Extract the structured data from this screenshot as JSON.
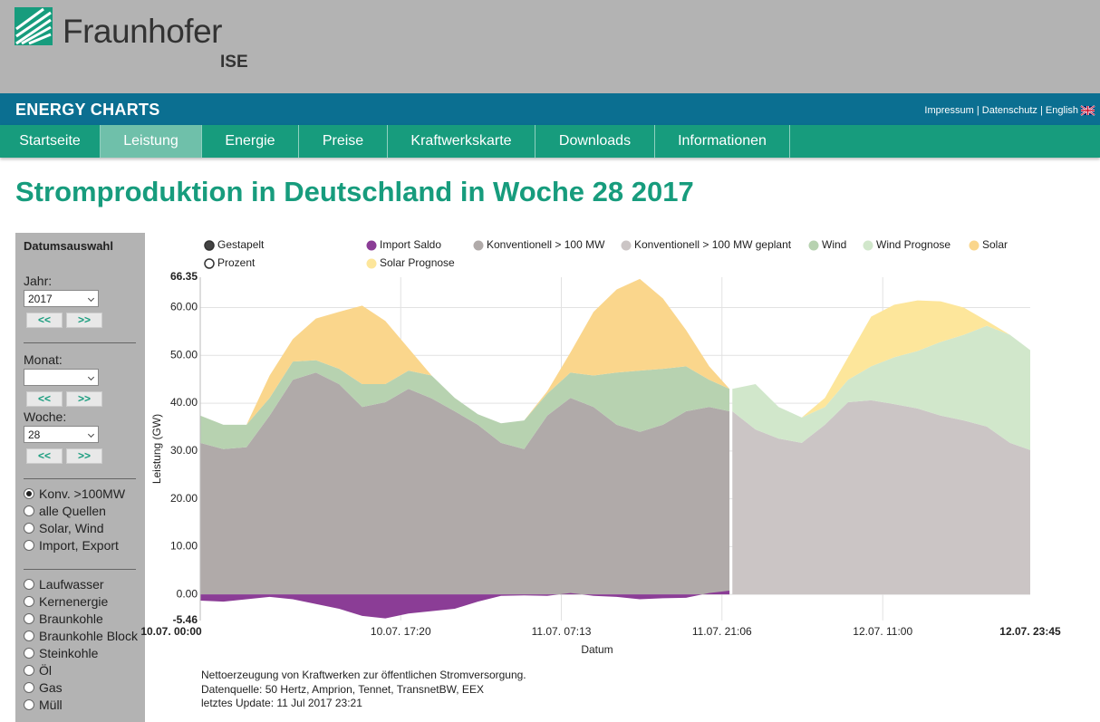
{
  "header": {
    "logo_name": "Fraunhofer",
    "logo_sub": "ISE",
    "banner": "ENERGY CHARTS",
    "links": [
      "Impressum",
      "Datenschutz",
      "English"
    ]
  },
  "nav": [
    "Startseite",
    "Leistung",
    "Energie",
    "Preise",
    "Kraftwerkskarte",
    "Downloads",
    "Informationen"
  ],
  "page_title": "Stromproduktion in Deutschland in Woche 28 2017",
  "sidebar": {
    "heading": "Datumsauswahl",
    "year_label": "Jahr:",
    "year": "2017",
    "month_label": "Monat:",
    "week_label": "Woche:",
    "week": "28",
    "prev": "<<",
    "next": ">>",
    "views": [
      "Konv. >100MW",
      "alle Quellen",
      "Solar, Wind",
      "Import, Export"
    ],
    "sources": [
      "Laufwasser",
      "Kernenergie",
      "Braunkohle",
      "Braunkohle Block",
      "Steinkohle",
      "Öl",
      "Gas",
      "Müll"
    ]
  },
  "chart_controls": [
    "Gestapelt",
    "Prozent"
  ],
  "chart_data": {
    "type": "area",
    "x_label": "Datum",
    "y_label": "Leistung (GW)",
    "x": [
      "2017-07-10T00:00",
      "2017-07-10T02:00",
      "2017-07-10T04:00",
      "2017-07-10T06:00",
      "2017-07-10T08:00",
      "2017-07-10T10:00",
      "2017-07-10T12:00",
      "2017-07-10T14:00",
      "2017-07-10T16:00",
      "2017-07-10T18:00",
      "2017-07-10T20:00",
      "2017-07-10T22:00",
      "2017-07-11T00:00",
      "2017-07-11T02:00",
      "2017-07-11T04:00",
      "2017-07-11T06:00",
      "2017-07-11T08:00",
      "2017-07-11T10:00",
      "2017-07-11T12:00",
      "2017-07-11T14:00",
      "2017-07-11T16:00",
      "2017-07-11T18:00",
      "2017-07-11T20:00",
      "2017-07-11T21:45",
      "2017-07-11T22:00",
      "2017-07-12T00:00",
      "2017-07-12T02:00",
      "2017-07-12T04:00",
      "2017-07-12T06:00",
      "2017-07-12T08:00",
      "2017-07-12T10:00",
      "2017-07-12T12:00",
      "2017-07-12T14:00",
      "2017-07-12T16:00",
      "2017-07-12T18:00",
      "2017-07-12T20:00",
      "2017-07-12T22:00",
      "2017-07-12T23:45"
    ],
    "xlim": [
      "2017-07-10T00:00",
      "2017-07-12T23:45"
    ],
    "xticks": [
      {
        "value": "2017-07-10T00:00",
        "label": "10.07. 00:00"
      },
      {
        "value": "2017-07-10T17:20",
        "label": "10.07. 17:20"
      },
      {
        "value": "2017-07-11T07:13",
        "label": "11.07. 07:13"
      },
      {
        "value": "2017-07-11T21:06",
        "label": "11.07. 21:06"
      },
      {
        "value": "2017-07-12T11:00",
        "label": "12.07. 11:00"
      },
      {
        "value": "2017-07-12T23:45",
        "label": "12.07. 23:45"
      }
    ],
    "ylim": [
      -5.46,
      66.35
    ],
    "yticks": [
      -5.46,
      {
        "value": 0,
        "label": "0.00"
      },
      {
        "value": 10,
        "label": "10.00"
      },
      {
        "value": 20,
        "label": "20.00"
      },
      {
        "value": 30,
        "label": "30.00"
      },
      {
        "value": 40,
        "label": "40.00"
      },
      {
        "value": 50,
        "label": "50.00"
      },
      {
        "value": 60,
        "label": "60.00"
      },
      66.35
    ],
    "grid": true,
    "stacked": true,
    "series": [
      {
        "name": "Import Saldo",
        "color": "#8b3d96",
        "stacked": false,
        "values": [
          -1.3,
          -1.5,
          -1,
          -0.5,
          -1,
          -2,
          -3,
          -4.5,
          -5,
          -4,
          -3.5,
          -3,
          -1.5,
          -0.3,
          -0.2,
          -0.3,
          0.3,
          -0.3,
          -0.5,
          -1,
          -0.8,
          -0.7,
          0.3,
          0.8,
          null,
          null,
          null,
          null,
          null,
          null,
          null,
          null,
          null,
          null,
          null,
          null,
          null,
          null
        ]
      },
      {
        "name": "Konventionell > 100 MW",
        "color": "#b0aaa9",
        "values": [
          31.7,
          30.4,
          30.8,
          37.4,
          44.9,
          46.4,
          44,
          39.2,
          40.2,
          43,
          41,
          38.3,
          35.5,
          31.7,
          30.4,
          37.4,
          41.1,
          39.2,
          35.5,
          34,
          35.5,
          38.3,
          39.2,
          38.3,
          null,
          null,
          null,
          null,
          null,
          null,
          null,
          null,
          null,
          null,
          null,
          null,
          null,
          null
        ]
      },
      {
        "name": "Konventionell > 100 MW geplant",
        "color": "#cbc5c5",
        "values": [
          null,
          null,
          null,
          null,
          null,
          null,
          null,
          null,
          null,
          null,
          null,
          null,
          null,
          null,
          null,
          null,
          null,
          null,
          null,
          null,
          null,
          null,
          null,
          null,
          38.3,
          34.5,
          32.6,
          31.7,
          35.5,
          40.2,
          40.6,
          39.8,
          38.9,
          37.4,
          36.4,
          35.1,
          31.7,
          30.2
        ]
      },
      {
        "name": "Wind",
        "color": "#b7d2b0",
        "values": [
          5.7,
          5.1,
          4.7,
          3.7,
          3.8,
          2.6,
          3.2,
          4.8,
          3.8,
          3.8,
          4.8,
          2.8,
          2.2,
          4.1,
          6,
          4.6,
          5.3,
          6.6,
          10.9,
          12.8,
          11.7,
          9.4,
          5.7,
          4.7,
          null,
          null,
          null,
          null,
          null,
          null,
          null,
          null,
          null,
          null,
          null,
          null,
          null,
          null
        ]
      },
      {
        "name": "Wind Prognose",
        "color": "#d1e7cb",
        "values": [
          null,
          null,
          null,
          null,
          null,
          null,
          null,
          null,
          null,
          null,
          null,
          null,
          null,
          null,
          null,
          null,
          null,
          null,
          null,
          null,
          null,
          null,
          null,
          null,
          4.7,
          9.5,
          6.6,
          5.3,
          3.7,
          4.7,
          7.1,
          9.8,
          12,
          15.4,
          17.9,
          21.1,
          22.6,
          20.9
        ]
      },
      {
        "name": "Solar",
        "color": "#fad68c",
        "values": [
          0,
          0,
          0,
          4.7,
          4.7,
          8.7,
          11.9,
          16.4,
          13.2,
          4.7,
          0,
          0,
          0,
          0,
          0,
          0.5,
          4.2,
          13.3,
          17.4,
          19.2,
          14.7,
          7.6,
          2.8,
          0,
          null,
          null,
          null,
          null,
          null,
          null,
          null,
          null,
          null,
          null,
          null,
          null,
          null,
          null
        ]
      },
      {
        "name": "Solar Prognose",
        "color": "#fde69b",
        "values": [
          null,
          null,
          null,
          null,
          null,
          null,
          null,
          null,
          null,
          null,
          null,
          null,
          null,
          null,
          null,
          null,
          null,
          null,
          null,
          null,
          null,
          null,
          null,
          null,
          0,
          0,
          0,
          0,
          1.9,
          4.7,
          10.4,
          11,
          10.6,
          8.5,
          5.7,
          1,
          0,
          0
        ]
      }
    ]
  },
  "footnotes": [
    "Nettoerzeugung von Kraftwerken zur öffentlichen Stromversorgung.",
    "Datenquelle: 50 Hertz, Amprion, Tennet, TransnetBW, EEX",
    "letztes Update:  11 Jul 2017 23:21"
  ]
}
